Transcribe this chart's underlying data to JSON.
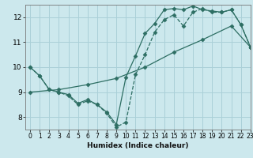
{
  "title": "",
  "xlabel": "Humidex (Indice chaleur)",
  "bg_color": "#cce8ed",
  "line_color": "#2d6e63",
  "grid_color": "#aad0d8",
  "line1_x": [
    0,
    1,
    2,
    3,
    4,
    5,
    6,
    7,
    8,
    9,
    10,
    11,
    12,
    13,
    14,
    15,
    16,
    17,
    18,
    19,
    20,
    21,
    22,
    23
  ],
  "line1_y": [
    10.0,
    9.65,
    9.1,
    9.0,
    8.85,
    8.5,
    8.65,
    8.5,
    8.15,
    7.6,
    7.8,
    9.7,
    10.5,
    11.4,
    11.9,
    12.1,
    11.65,
    12.2,
    12.35,
    12.2,
    12.2,
    12.3,
    11.7,
    10.8
  ],
  "line2_x": [
    0,
    1,
    2,
    3,
    4,
    5,
    6,
    7,
    8,
    9,
    10,
    11,
    12,
    13,
    14,
    15,
    16,
    17,
    18,
    19,
    20,
    21,
    22,
    23
  ],
  "line2_y": [
    10.0,
    9.65,
    9.1,
    9.0,
    8.9,
    8.55,
    8.7,
    8.5,
    8.2,
    7.7,
    9.6,
    10.45,
    11.35,
    11.75,
    12.3,
    12.35,
    12.3,
    12.45,
    12.3,
    12.25,
    12.2,
    12.3,
    11.7,
    10.8
  ],
  "line3_x": [
    0,
    3,
    6,
    9,
    12,
    15,
    18,
    21,
    23
  ],
  "line3_y": [
    9.0,
    9.1,
    9.3,
    9.55,
    10.0,
    10.6,
    11.1,
    11.65,
    10.8
  ],
  "xlim": [
    -0.5,
    23
  ],
  "ylim": [
    7.5,
    12.5
  ],
  "yticks": [
    8,
    9,
    10,
    11,
    12
  ],
  "xticks": [
    0,
    1,
    2,
    3,
    4,
    5,
    6,
    7,
    8,
    9,
    10,
    11,
    12,
    13,
    14,
    15,
    16,
    17,
    18,
    19,
    20,
    21,
    22,
    23
  ]
}
